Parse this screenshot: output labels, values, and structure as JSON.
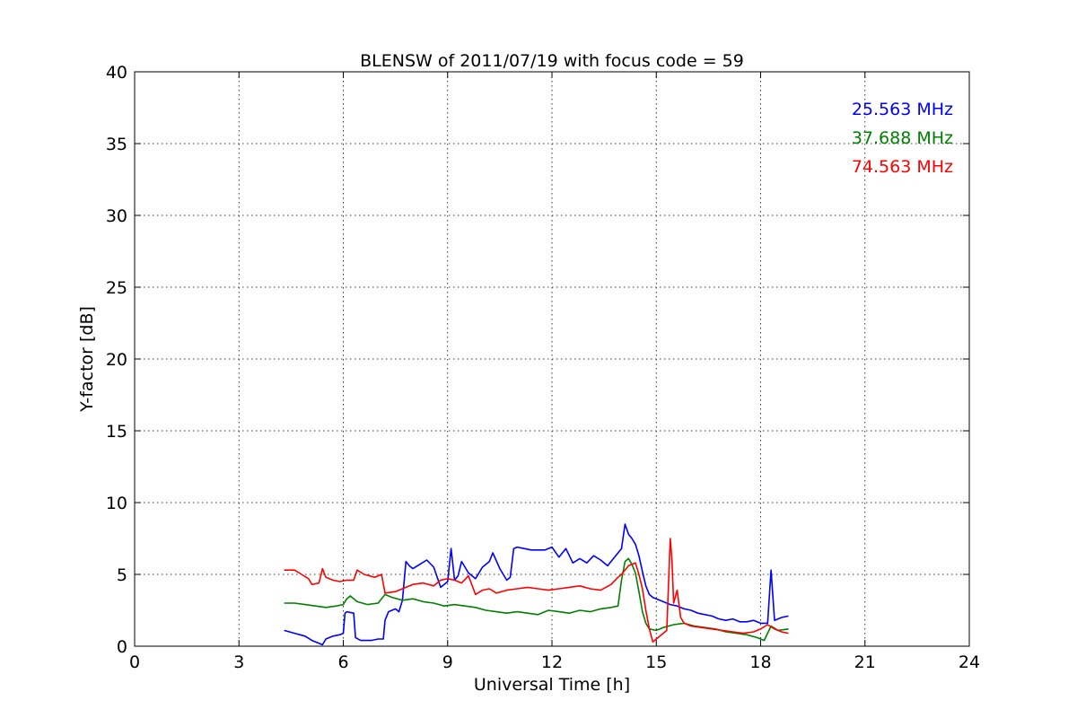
{
  "chart_data": {
    "type": "line",
    "title": "BLENSW of 2011/07/19 with focus code = 59",
    "xlabel": "Universal Time [h]",
    "ylabel": "Y-factor [dB]",
    "xlim": [
      0,
      24
    ],
    "ylim": [
      0,
      40
    ],
    "xticks": [
      0,
      3,
      6,
      9,
      12,
      15,
      18,
      21,
      24
    ],
    "yticks": [
      0,
      5,
      10,
      15,
      20,
      25,
      30,
      35,
      40
    ],
    "grid": true,
    "legend_position": "top-right",
    "series": [
      {
        "name": "25.563 MHz",
        "color": "#0000ff",
        "x": [
          4.3,
          4.6,
          4.9,
          5.1,
          5.3,
          5.4,
          5.5,
          5.7,
          5.9,
          6.0,
          6.05,
          6.1,
          6.3,
          6.35,
          6.5,
          6.8,
          7.0,
          7.15,
          7.2,
          7.3,
          7.5,
          7.6,
          7.7,
          7.8,
          7.9,
          8.0,
          8.2,
          8.4,
          8.6,
          8.8,
          9.0,
          9.1,
          9.2,
          9.3,
          9.4,
          9.6,
          9.8,
          10.0,
          10.2,
          10.3,
          10.5,
          10.7,
          10.8,
          10.9,
          11.0,
          11.2,
          11.4,
          11.6,
          11.8,
          12.0,
          12.2,
          12.4,
          12.6,
          12.8,
          13.0,
          13.2,
          13.4,
          13.6,
          13.8,
          14.0,
          14.1,
          14.2,
          14.3,
          14.4,
          14.5,
          14.6,
          14.7,
          14.8,
          14.9,
          15.0,
          15.2,
          15.4,
          15.6,
          15.8,
          16.0,
          16.2,
          16.4,
          16.6,
          16.8,
          17.0,
          17.2,
          17.4,
          17.6,
          17.8,
          18.0,
          18.2,
          18.3,
          18.4,
          18.6,
          18.8
        ],
        "values": [
          1.1,
          0.9,
          0.7,
          0.4,
          0.2,
          0.1,
          0.5,
          0.7,
          0.8,
          0.9,
          2.3,
          2.4,
          2.3,
          0.6,
          0.4,
          0.4,
          0.5,
          0.5,
          1.8,
          2.4,
          2.6,
          2.4,
          3.2,
          5.9,
          5.6,
          5.4,
          5.7,
          6.0,
          5.5,
          4.1,
          4.5,
          6.8,
          4.6,
          4.9,
          5.9,
          5.1,
          4.7,
          5.5,
          5.9,
          6.5,
          5.4,
          4.6,
          4.8,
          6.8,
          6.9,
          6.8,
          6.7,
          6.7,
          6.7,
          6.9,
          6.2,
          6.8,
          5.8,
          6.1,
          5.8,
          6.3,
          6.0,
          5.6,
          6.2,
          6.8,
          8.5,
          7.8,
          7.5,
          7.1,
          6.3,
          5.2,
          4.2,
          3.6,
          3.4,
          3.3,
          3.1,
          2.9,
          2.8,
          2.6,
          2.5,
          2.3,
          2.2,
          2.1,
          1.9,
          1.8,
          1.9,
          1.7,
          1.7,
          1.8,
          1.6,
          1.6,
          5.3,
          1.8,
          2.0,
          2.1
        ]
      },
      {
        "name": "37.688 MHz",
        "color": "#008000",
        "x": [
          4.3,
          4.6,
          4.9,
          5.2,
          5.5,
          5.8,
          6.0,
          6.1,
          6.2,
          6.4,
          6.7,
          7.0,
          7.2,
          7.4,
          7.7,
          8.0,
          8.3,
          8.6,
          8.9,
          9.2,
          9.5,
          9.8,
          10.1,
          10.4,
          10.7,
          11.0,
          11.3,
          11.6,
          11.9,
          12.2,
          12.5,
          12.8,
          13.1,
          13.4,
          13.7,
          13.9,
          14.0,
          14.1,
          14.2,
          14.3,
          14.4,
          14.5,
          14.6,
          14.7,
          14.8,
          15.0,
          15.2,
          15.5,
          15.8,
          16.1,
          16.4,
          16.7,
          17.0,
          17.3,
          17.6,
          17.9,
          18.1,
          18.3,
          18.5,
          18.8
        ],
        "values": [
          3.0,
          3.0,
          2.9,
          2.8,
          2.7,
          2.8,
          2.9,
          3.3,
          3.5,
          3.1,
          2.9,
          3.0,
          3.6,
          3.4,
          3.2,
          3.3,
          3.1,
          3.0,
          2.8,
          2.9,
          2.8,
          2.7,
          2.5,
          2.4,
          2.3,
          2.4,
          2.3,
          2.2,
          2.5,
          2.4,
          2.3,
          2.5,
          2.4,
          2.6,
          2.7,
          2.8,
          4.6,
          5.9,
          6.1,
          5.7,
          5.1,
          3.8,
          2.4,
          1.6,
          1.2,
          1.1,
          1.3,
          1.5,
          1.6,
          1.4,
          1.3,
          1.2,
          1.0,
          0.9,
          0.8,
          0.6,
          0.4,
          1.4,
          1.1,
          1.2
        ]
      },
      {
        "name": "74.563 MHz",
        "color": "#ff0000",
        "x": [
          4.3,
          4.6,
          4.8,
          5.0,
          5.1,
          5.3,
          5.4,
          5.5,
          5.7,
          5.9,
          6.1,
          6.3,
          6.4,
          6.6,
          6.9,
          7.1,
          7.2,
          7.5,
          7.8,
          8.0,
          8.3,
          8.6,
          8.8,
          9.0,
          9.2,
          9.4,
          9.6,
          9.8,
          10.0,
          10.2,
          10.4,
          10.7,
          11.0,
          11.3,
          11.6,
          11.9,
          12.2,
          12.5,
          12.8,
          13.1,
          13.4,
          13.7,
          13.9,
          14.0,
          14.2,
          14.4,
          14.5,
          14.6,
          14.7,
          14.8,
          14.9,
          15.0,
          15.2,
          15.3,
          15.4,
          15.45,
          15.5,
          15.6,
          15.7,
          15.8,
          16.0,
          16.3,
          16.6,
          16.9,
          17.2,
          17.5,
          17.8,
          18.0,
          18.2,
          18.4,
          18.6,
          18.8
        ],
        "values": [
          5.3,
          5.3,
          5.0,
          4.7,
          4.3,
          4.4,
          5.4,
          4.8,
          4.6,
          4.5,
          4.6,
          4.6,
          5.3,
          5.0,
          4.8,
          5.0,
          3.7,
          3.8,
          4.1,
          4.3,
          4.4,
          4.2,
          4.6,
          4.7,
          4.6,
          4.4,
          4.9,
          3.6,
          3.9,
          4.0,
          3.7,
          3.9,
          4.0,
          4.1,
          4.0,
          3.9,
          4.0,
          4.1,
          4.2,
          4.0,
          3.9,
          4.3,
          4.8,
          5.0,
          5.6,
          5.8,
          5.0,
          4.0,
          2.5,
          1.2,
          0.3,
          0.5,
          0.9,
          1.1,
          7.5,
          6.0,
          3.0,
          3.9,
          2.0,
          1.6,
          1.4,
          1.3,
          1.2,
          1.1,
          1.0,
          0.9,
          1.0,
          1.2,
          1.5,
          1.2,
          1.0,
          0.9
        ]
      }
    ]
  }
}
